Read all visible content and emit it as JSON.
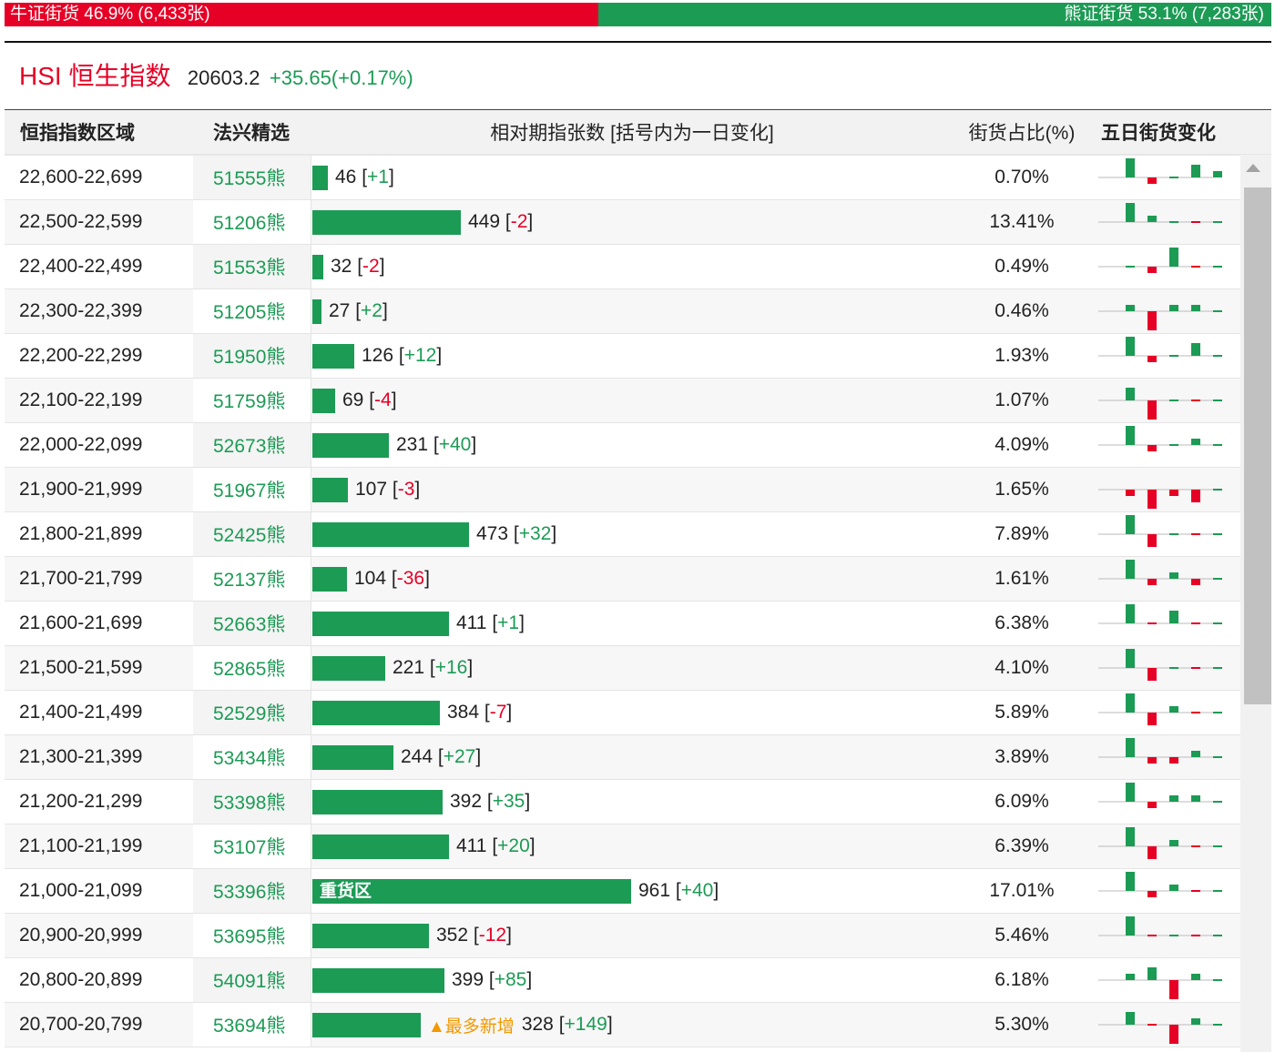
{
  "ratio": {
    "bull_label": "牛证街货 46.9% (6,433张)",
    "bear_label": "熊证街货 53.1% (7,283张)",
    "bull_color": "#e60026",
    "bear_color": "#1c9b55"
  },
  "index": {
    "name": "HSI 恒生指数",
    "price": "20603.2",
    "change": "+35.65(+0.17%)"
  },
  "headers": {
    "range": "恒指指数区域",
    "warrant": "法兴精选",
    "contracts": "相对期指张数 [括号内为一日变化]",
    "share": "街货占比(%)",
    "five_day": "五日街货变化"
  },
  "rows": [
    {
      "range": "22,600-22,699",
      "warrant": "51555熊",
      "count": 46,
      "count_text": "46",
      "change": "+1",
      "share": "0.70%",
      "label": "",
      "note": "",
      "five": [
        3,
        -1,
        0,
        2,
        1
      ]
    },
    {
      "range": "22,500-22,599",
      "warrant": "51206熊",
      "count": 449,
      "count_text": "449",
      "change": "-2",
      "share": "13.41%",
      "label": "",
      "note": "",
      "five": [
        3,
        1,
        0,
        0,
        0
      ]
    },
    {
      "range": "22,400-22,499",
      "warrant": "51553熊",
      "count": 32,
      "count_text": "32",
      "change": "-2",
      "share": "0.49%",
      "label": "",
      "note": "",
      "five": [
        0,
        -1,
        3,
        0,
        0
      ]
    },
    {
      "range": "22,300-22,399",
      "warrant": "51205熊",
      "count": 27,
      "count_text": "27",
      "change": "+2",
      "share": "0.46%",
      "label": "",
      "note": "",
      "five": [
        1,
        -3,
        1,
        1,
        0
      ]
    },
    {
      "range": "22,200-22,299",
      "warrant": "51950熊",
      "count": 126,
      "count_text": "126",
      "change": "+12",
      "share": "1.93%",
      "label": "",
      "note": "",
      "five": [
        3,
        -1,
        0,
        2,
        0
      ]
    },
    {
      "range": "22,100-22,199",
      "warrant": "51759熊",
      "count": 69,
      "count_text": "69",
      "change": "-4",
      "share": "1.07%",
      "label": "",
      "note": "",
      "five": [
        2,
        -3,
        0,
        0,
        0
      ]
    },
    {
      "range": "22,000-22,099",
      "warrant": "52673熊",
      "count": 231,
      "count_text": "231",
      "change": "+40",
      "share": "4.09%",
      "label": "",
      "note": "",
      "five": [
        3,
        -1,
        0,
        1,
        0
      ]
    },
    {
      "range": "21,900-21,999",
      "warrant": "51967熊",
      "count": 107,
      "count_text": "107",
      "change": "-3",
      "share": "1.65%",
      "label": "",
      "note": "",
      "five": [
        -1,
        -3,
        -1,
        -2,
        0
      ]
    },
    {
      "range": "21,800-21,899",
      "warrant": "52425熊",
      "count": 473,
      "count_text": "473",
      "change": "+32",
      "share": "7.89%",
      "label": "",
      "note": "",
      "five": [
        3,
        -2,
        0,
        0,
        0
      ]
    },
    {
      "range": "21,700-21,799",
      "warrant": "52137熊",
      "count": 104,
      "count_text": "104",
      "change": "-36",
      "share": "1.61%",
      "label": "",
      "note": "",
      "five": [
        3,
        -1,
        1,
        -1,
        0
      ]
    },
    {
      "range": "21,600-21,699",
      "warrant": "52663熊",
      "count": 411,
      "count_text": "411",
      "change": "+1",
      "share": "6.38%",
      "label": "",
      "note": "",
      "five": [
        3,
        0,
        2,
        0,
        0
      ]
    },
    {
      "range": "21,500-21,599",
      "warrant": "52865熊",
      "count": 221,
      "count_text": "221",
      "change": "+16",
      "share": "4.10%",
      "label": "",
      "note": "",
      "five": [
        3,
        -2,
        0,
        0,
        0
      ]
    },
    {
      "range": "21,400-21,499",
      "warrant": "52529熊",
      "count": 384,
      "count_text": "384",
      "change": "-7",
      "share": "5.89%",
      "label": "",
      "note": "",
      "five": [
        3,
        -2,
        1,
        0,
        0
      ]
    },
    {
      "range": "21,300-21,399",
      "warrant": "53434熊",
      "count": 244,
      "count_text": "244",
      "change": "+27",
      "share": "3.89%",
      "label": "",
      "note": "",
      "five": [
        3,
        -1,
        -1,
        1,
        0
      ]
    },
    {
      "range": "21,200-21,299",
      "warrant": "53398熊",
      "count": 392,
      "count_text": "392",
      "change": "+35",
      "share": "6.09%",
      "label": "",
      "note": "",
      "five": [
        3,
        -1,
        1,
        1,
        0
      ]
    },
    {
      "range": "21,100-21,199",
      "warrant": "53107熊",
      "count": 411,
      "count_text": "411",
      "change": "+20",
      "share": "6.39%",
      "label": "",
      "note": "",
      "five": [
        3,
        -2,
        1,
        0,
        0
      ]
    },
    {
      "range": "21,000-21,099",
      "warrant": "53396熊",
      "count": 961,
      "count_text": "961",
      "change": "+40",
      "share": "17.01%",
      "label": "重货区",
      "note": "",
      "five": [
        3,
        -1,
        1,
        0,
        0
      ]
    },
    {
      "range": "20,900-20,999",
      "warrant": "53695熊",
      "count": 352,
      "count_text": "352",
      "change": "-12",
      "share": "5.46%",
      "label": "",
      "note": "",
      "five": [
        3,
        0,
        0,
        0,
        0
      ]
    },
    {
      "range": "20,800-20,899",
      "warrant": "54091熊",
      "count": 399,
      "count_text": "399",
      "change": "+85",
      "share": "6.18%",
      "label": "",
      "note": "",
      "five": [
        1,
        2,
        -3,
        1,
        0
      ]
    },
    {
      "range": "20,700-20,799",
      "warrant": "53694熊",
      "count": 328,
      "count_text": "328",
      "change": "+149",
      "share": "5.30%",
      "label": "",
      "note": "▲最多新增",
      "five": [
        2,
        0,
        -3,
        1,
        0
      ]
    }
  ]
}
